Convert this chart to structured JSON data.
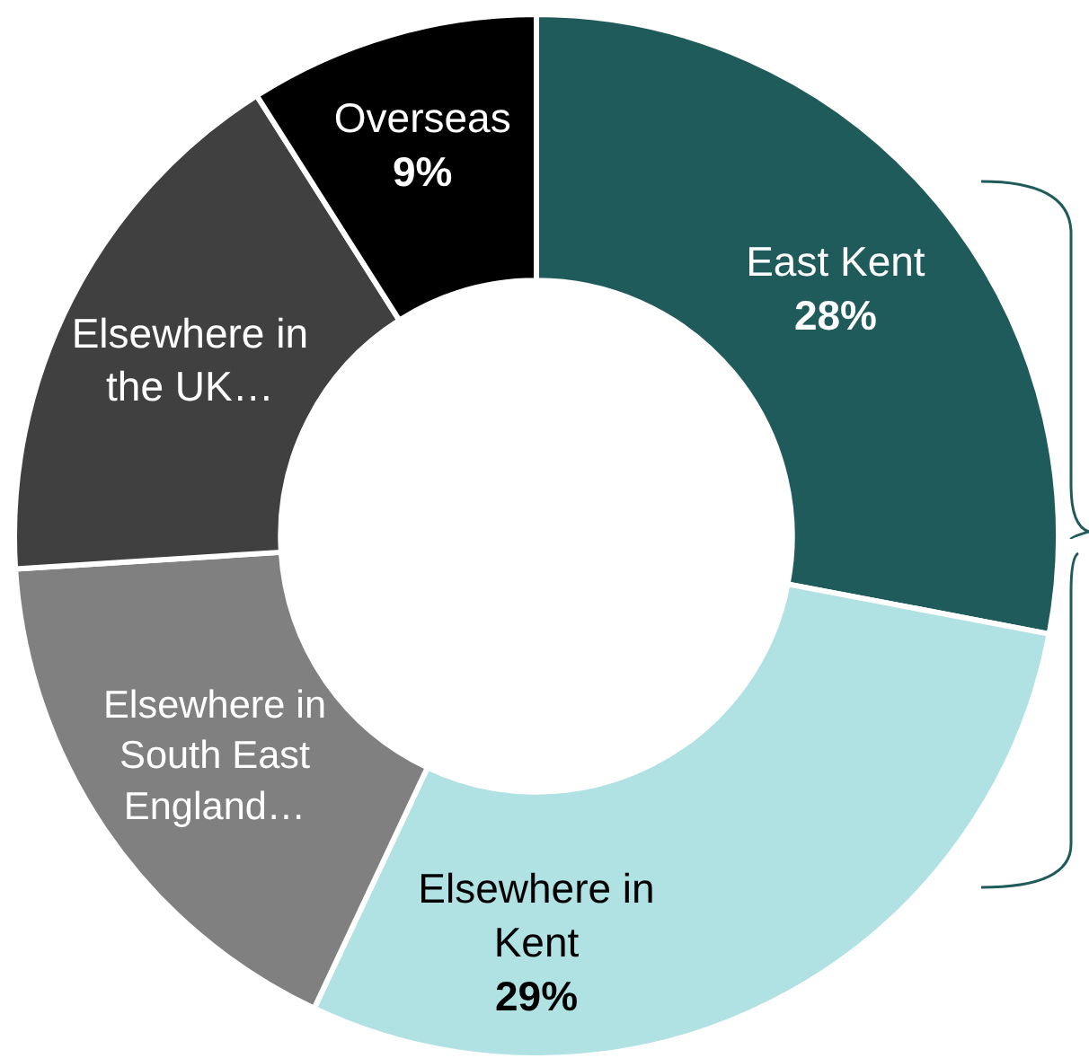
{
  "chart_data": {
    "type": "donut",
    "categories": [
      "East Kent",
      "Elsewhere in Kent",
      "Elsewhere in South East England…",
      "Elsewhere in the UK…",
      "Overseas"
    ],
    "values": [
      28,
      29,
      17,
      17,
      9
    ],
    "value_labels": [
      "28%",
      "29%",
      null,
      null,
      "9%"
    ],
    "colors": [
      "#1f5b5b",
      "#b0e1e3",
      "#808080",
      "#404040",
      "#000000"
    ],
    "legend": false
  }
}
